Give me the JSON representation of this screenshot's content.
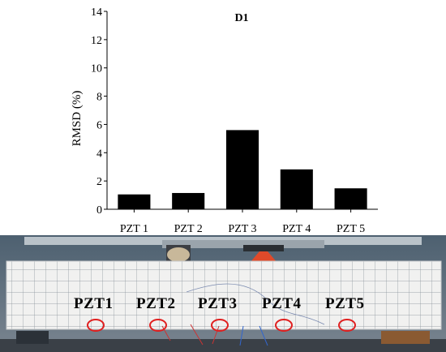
{
  "chart_data": {
    "type": "bar",
    "title": "D1",
    "ylabel": "RMSD (%)",
    "xlabel": "",
    "categories": [
      "PZT 1",
      "PZT 2",
      "PZT 3",
      "PZT 4",
      "PZT 5"
    ],
    "values": [
      1.05,
      1.15,
      5.6,
      2.82,
      1.48
    ],
    "ylim": [
      0,
      14
    ],
    "yticks": [
      0,
      2,
      4,
      6,
      8,
      10,
      12,
      14
    ],
    "grid": false,
    "bar_color": "#000000"
  },
  "photo": {
    "labels": [
      "PZT1",
      "PZT2",
      "PZT3",
      "PZT4",
      "PZT5"
    ],
    "marker_color": "#e02020"
  }
}
